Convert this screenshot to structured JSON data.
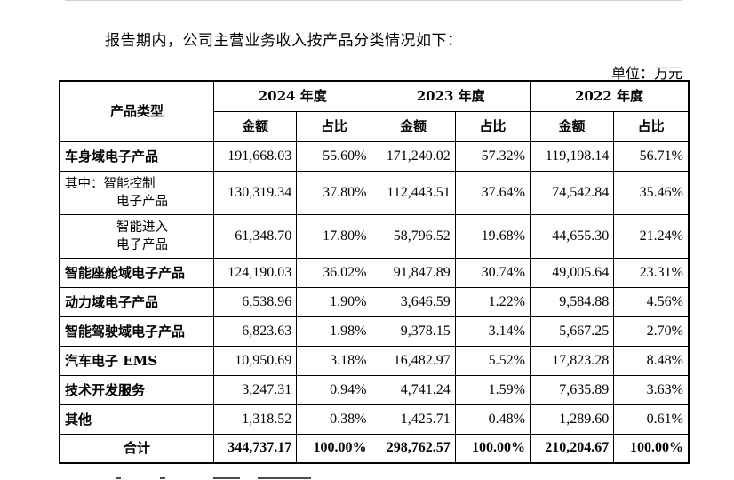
{
  "intro_text": "报告期内，公司主营业务收入按产品分类情况如下：",
  "unit_text": "单位：万元",
  "table": {
    "header_category": "产品类型",
    "years": [
      "2024 年度",
      "2023 年度",
      "2022 年度"
    ],
    "sub_headers": {
      "amount": "金额",
      "ratio": "占比"
    },
    "rows": [
      {
        "label": "车身域电子产品",
        "values": [
          "191,668.03",
          "55.60%",
          "171,240.02",
          "57.32%",
          "119,198.14",
          "56.71%"
        ]
      },
      {
        "label_line1": "其中：智能控制",
        "label_line2": "电子产品",
        "values": [
          "130,319.34",
          "37.80%",
          "112,443.51",
          "37.64%",
          "74,542.84",
          "35.46%"
        ]
      },
      {
        "label_line1": "智能进入",
        "label_line2": "电子产品",
        "values": [
          "61,348.70",
          "17.80%",
          "58,796.52",
          "19.68%",
          "44,655.30",
          "21.24%"
        ]
      },
      {
        "label": "智能座舱域电子产品",
        "values": [
          "124,190.03",
          "36.02%",
          "91,847.89",
          "30.74%",
          "49,005.64",
          "23.31%"
        ]
      },
      {
        "label": "动力域电子产品",
        "values": [
          "6,538.96",
          "1.90%",
          "3,646.59",
          "1.22%",
          "9,584.88",
          "4.56%"
        ]
      },
      {
        "label": "智能驾驶域电子产品",
        "values": [
          "6,823.63",
          "1.98%",
          "9,378.15",
          "3.14%",
          "5,667.25",
          "2.70%"
        ]
      },
      {
        "label": "汽车电子 EMS",
        "values": [
          "10,950.69",
          "3.18%",
          "16,482.97",
          "5.52%",
          "17,823.28",
          "8.48%"
        ]
      },
      {
        "label": "技术开发服务",
        "values": [
          "3,247.31",
          "0.94%",
          "4,741.24",
          "1.59%",
          "7,635.89",
          "3.63%"
        ]
      },
      {
        "label": "其他",
        "values": [
          "1,318.52",
          "0.38%",
          "1,425.71",
          "0.48%",
          "1,289.60",
          "0.61%"
        ]
      }
    ],
    "total": {
      "label": "合计",
      "values": [
        "344,737.17",
        "100.00%",
        "298,762.57",
        "100.00%",
        "210,204.67",
        "100.00%"
      ]
    }
  }
}
